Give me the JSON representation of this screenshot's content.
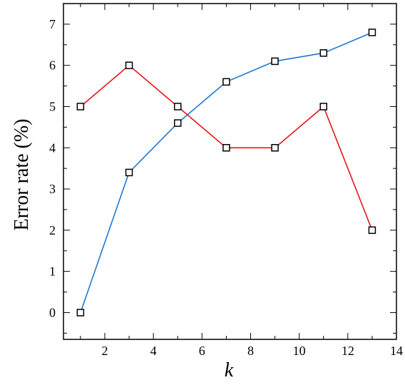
{
  "chart_data": {
    "type": "line",
    "xlabel": "k",
    "ylabel": "Error rate (%)",
    "xlim": [
      0.3,
      14.0
    ],
    "ylim": [
      -0.65,
      7.5
    ],
    "xticks": [
      2,
      4,
      6,
      8,
      10,
      12,
      14
    ],
    "yticks": [
      0,
      1,
      2,
      3,
      4,
      5,
      6,
      7
    ],
    "grid": false,
    "legend": "none",
    "series": [
      {
        "color": "#1f77d4",
        "marker": "square",
        "points": [
          {
            "x": 1,
            "y": 0.0
          },
          {
            "x": 3,
            "y": 3.4
          },
          {
            "x": 5,
            "y": 4.6
          },
          {
            "x": 7,
            "y": 5.6
          },
          {
            "x": 9,
            "y": 6.1
          },
          {
            "x": 11,
            "y": 6.3
          },
          {
            "x": 13,
            "y": 6.8
          }
        ]
      },
      {
        "color": "#e8141a",
        "marker": "square",
        "points": [
          {
            "x": 1,
            "y": 5.0
          },
          {
            "x": 3,
            "y": 6.0
          },
          {
            "x": 5,
            "y": 5.0
          },
          {
            "x": 7,
            "y": 4.0
          },
          {
            "x": 9,
            "y": 4.0
          },
          {
            "x": 11,
            "y": 5.0
          },
          {
            "x": 13,
            "y": 2.0
          }
        ]
      }
    ]
  }
}
